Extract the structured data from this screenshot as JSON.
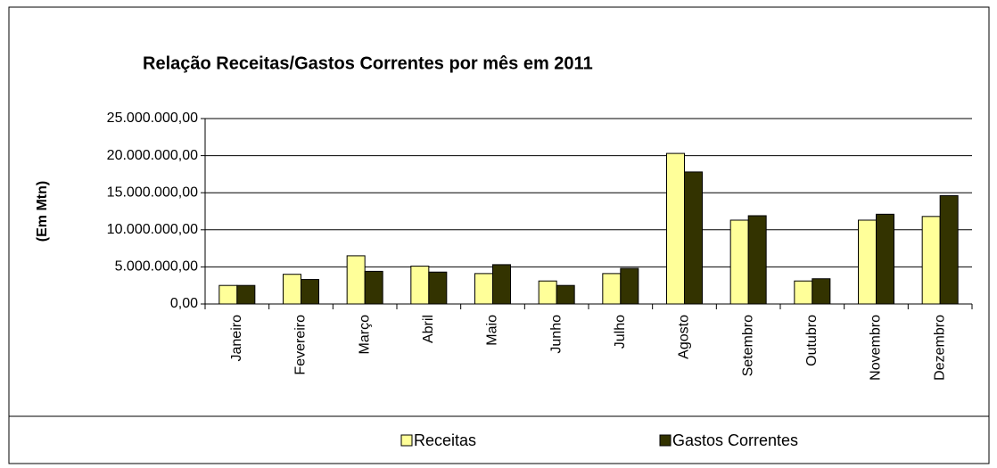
{
  "chart_data": {
    "type": "bar",
    "title": "Relação  Receitas/Gastos Correntes por mês em 2011",
    "y_label": "(Em Mtn)",
    "categories": [
      "Janeiro",
      "Fevereiro",
      "Março",
      "Abril",
      "Maio",
      "Junho",
      "Julho",
      "Agosto",
      "Setembro",
      "Outubro",
      "Novembro",
      "Dezembro"
    ],
    "series": [
      {
        "name": "Receitas",
        "color": "#ffff99",
        "values": [
          2500000,
          4000000,
          6500000,
          5100000,
          4100000,
          3100000,
          4100000,
          20300000,
          11300000,
          3100000,
          11300000,
          11800000
        ]
      },
      {
        "name": "Gastos Correntes",
        "color": "#333300",
        "values": [
          2500000,
          3300000,
          4400000,
          4300000,
          5300000,
          2500000,
          4800000,
          17800000,
          11900000,
          3400000,
          12100000,
          14600000
        ]
      }
    ],
    "ylim": [
      0,
      25000000
    ],
    "yticks": [
      {
        "value": 0,
        "label": "0,00"
      },
      {
        "value": 5000000,
        "label": "5.000.000,00"
      },
      {
        "value": 10000000,
        "label": "10.000.000,00"
      },
      {
        "value": 15000000,
        "label": "15.000.000,00"
      },
      {
        "value": 20000000,
        "label": "20.000.000,00"
      },
      {
        "value": 25000000,
        "label": "25.000.000,00"
      }
    ],
    "grid": true,
    "legend": "bottom"
  }
}
